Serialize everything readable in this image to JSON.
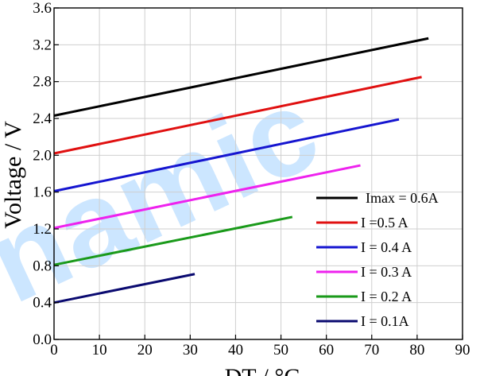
{
  "chart_data": {
    "type": "line",
    "xlabel": "DT / °C",
    "ylabel": "Voltage / V",
    "xlim": [
      0,
      90
    ],
    "ylim": [
      0.0,
      3.6
    ],
    "x_ticks": [
      "0",
      "10",
      "20",
      "30",
      "40",
      "50",
      "60",
      "70",
      "80",
      "90"
    ],
    "y_ticks": [
      "0.0",
      "0.4",
      "0.8",
      "1.2",
      "1.6",
      "2.0",
      "2.4",
      "2.8",
      "3.2",
      "3.6"
    ],
    "grid": true,
    "legend_position": "bottom-right",
    "watermark": "namic",
    "series": [
      {
        "name": "Imax = 0.6A",
        "color": "#000000",
        "x": [
          0,
          82.5
        ],
        "y": [
          2.43,
          3.27
        ]
      },
      {
        "name": "I =0.5 A",
        "color": "#e01010",
        "x": [
          0,
          81
        ],
        "y": [
          2.02,
          2.85
        ]
      },
      {
        "name": "I = 0.4 A",
        "color": "#1515d0",
        "x": [
          0,
          76
        ],
        "y": [
          1.61,
          2.39
        ]
      },
      {
        "name": "I = 0.3 A",
        "color": "#ee22ee",
        "x": [
          0,
          67.5
        ],
        "y": [
          1.21,
          1.89
        ]
      },
      {
        "name": "I = 0.2 A",
        "color": "#1a9a1a",
        "x": [
          0,
          52.5
        ],
        "y": [
          0.81,
          1.33
        ]
      },
      {
        "name": "I = 0.1A",
        "color": "#0a0a70",
        "x": [
          0,
          31
        ],
        "y": [
          0.4,
          0.71
        ]
      }
    ]
  }
}
